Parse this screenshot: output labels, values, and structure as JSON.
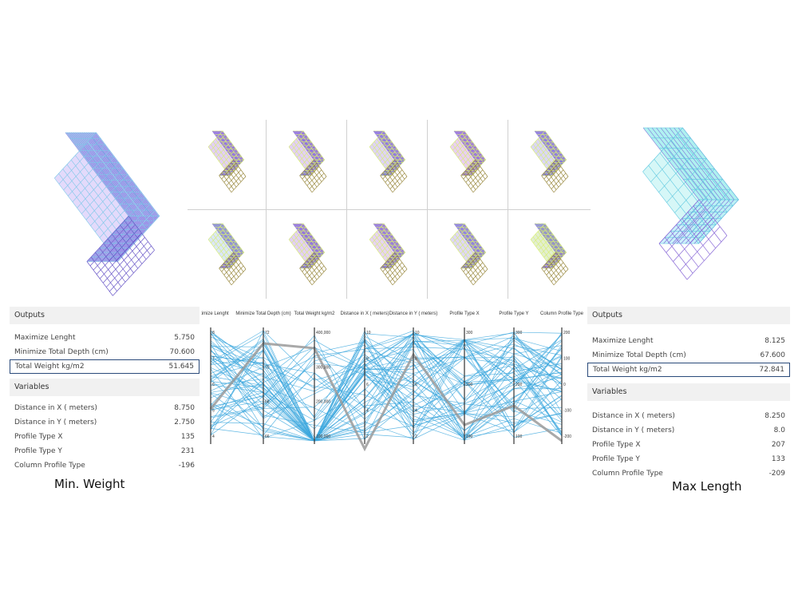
{
  "left_panel": {
    "outputs_title": "Outputs",
    "outputs": [
      {
        "label": "Maximize Lenght",
        "value": "5.750"
      },
      {
        "label": "Minimize Total Depth (cm)",
        "value": "70.600"
      },
      {
        "label": "Total Weight kg/m2",
        "value": "51.645"
      }
    ],
    "variables_title": "Variables",
    "variables": [
      {
        "label": "Distance in X ( meters)",
        "value": "8.750"
      },
      {
        "label": "Distance in Y ( meters)",
        "value": "2.750"
      },
      {
        "label": "Profile Type X",
        "value": "135"
      },
      {
        "label": "Profile Type Y",
        "value": "231"
      },
      {
        "label": "Column Profile Type",
        "value": "-196"
      }
    ],
    "caption": "Min. Weight"
  },
  "right_panel": {
    "outputs_title": "Outputs",
    "outputs": [
      {
        "label": "Maximize Lenght",
        "value": "8.125"
      },
      {
        "label": "Minimize Total Depth (cm)",
        "value": "67.600"
      },
      {
        "label": "Total Weight kg/m2",
        "value": "72.841"
      }
    ],
    "variables_title": "Variables",
    "variables": [
      {
        "label": "Distance in X ( meters)",
        "value": "8.250"
      },
      {
        "label": "Distance in Y ( meters)",
        "value": "8.0"
      },
      {
        "label": "Profile Type X",
        "value": "207"
      },
      {
        "label": "Profile Type Y",
        "value": "133"
      },
      {
        "label": "Column Profile Type",
        "value": "-209"
      }
    ],
    "caption": "Max Length"
  },
  "parallel_plot": {
    "axes": [
      "Maximize Lenght",
      "Minimize Total Depth (cm)",
      "Total Weight kg/m2",
      "Distance in X ( meters)",
      "Distance in Y ( meters)",
      "Profile Type X",
      "Profile Type Y",
      "Column Profile Type"
    ],
    "line_color": "#3aa6dd",
    "highlight_color": "#9a9a9a"
  },
  "colors": {
    "frame_purple": "#8a6ad8",
    "frame_cyan": "#7fe0e8",
    "frame_yellow": "#e8ff70",
    "highlight_border": "#2a4a7a"
  }
}
